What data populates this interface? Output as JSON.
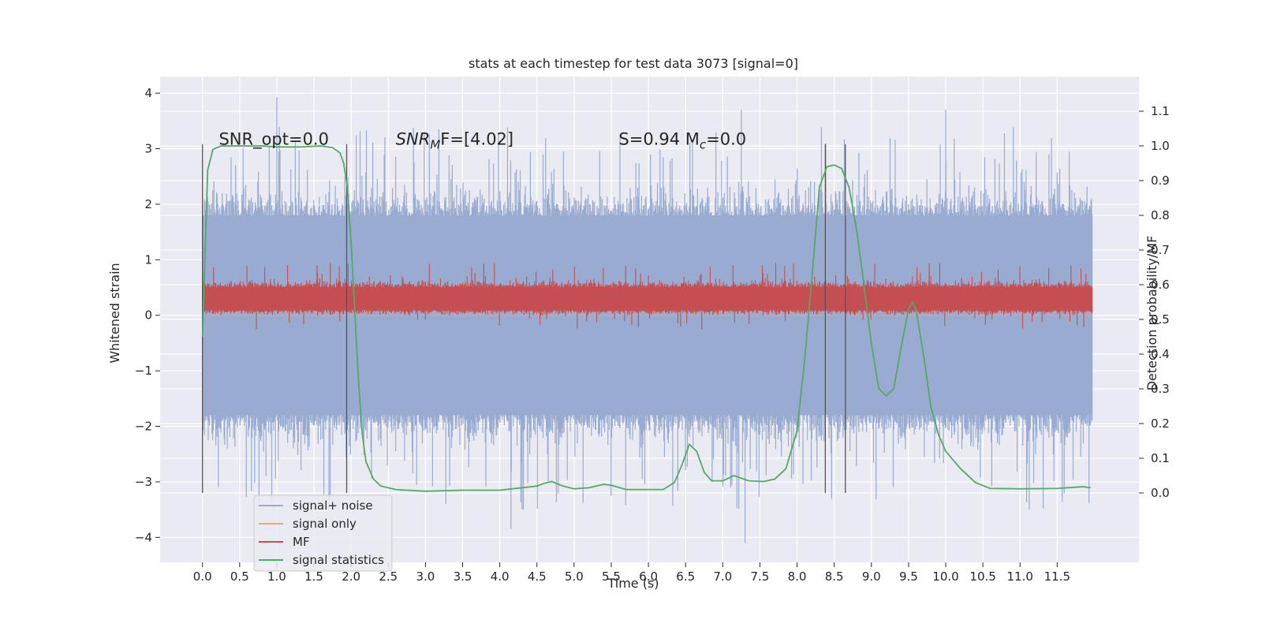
{
  "chart_data": {
    "type": "line",
    "title": "stats at each timestep for test data 3073 [signal=0]",
    "xlabel": "Time (s)",
    "ylabel": "Whitened strain",
    "ylabel_right": "Detection probability/MF",
    "xlim": [
      -0.57,
      12.6
    ],
    "ylim": [
      -4.45,
      4.3
    ],
    "ylim_right": [
      -0.2,
      1.2
    ],
    "x_ticks": [
      0.0,
      0.5,
      1.0,
      1.5,
      2.0,
      2.5,
      3.0,
      3.5,
      4.0,
      4.5,
      5.0,
      5.5,
      6.0,
      6.5,
      7.0,
      7.5,
      8.0,
      8.5,
      9.0,
      9.5,
      10.0,
      10.5,
      11.0,
      11.5
    ],
    "x_tick_labels": [
      "0.0",
      "0.5",
      "1.0",
      "1.5",
      "2.0",
      "2.5",
      "3.0",
      "3.5",
      "4.0",
      "4.5",
      "5.0",
      "5.5",
      "6.0",
      "6.5",
      "7.0",
      "7.5",
      "8.0",
      "8.5",
      "9.0",
      "9.5",
      "10.0",
      "10.5",
      "11.0",
      "11.5"
    ],
    "y_ticks": [
      -4,
      -3,
      -2,
      -1,
      0,
      1,
      2,
      3,
      4
    ],
    "y_tick_labels": [
      "−4",
      "−3",
      "−2",
      "−1",
      "0",
      "1",
      "2",
      "3",
      "4"
    ],
    "y_ticks_right": [
      0.0,
      0.1,
      0.2,
      0.3,
      0.4,
      0.5,
      0.6,
      0.7,
      0.8,
      0.9,
      1.0,
      1.1
    ],
    "y_tick_labels_right": [
      "0.0",
      "0.1",
      "0.2",
      "0.3",
      "0.4",
      "0.5",
      "0.6",
      "0.7",
      "0.8",
      "0.9",
      "1.0",
      "1.1"
    ],
    "grid": true,
    "legend_position": "bottom-left",
    "colors": {
      "background": "#eaeaf2",
      "signal_noise": "#9aabd1",
      "signal_only": "#e8a487",
      "mf": "#c44e52",
      "stats": "#55a868",
      "vlines": "#555555"
    },
    "series": [
      {
        "name": "signal+ noise",
        "axis": "left",
        "description_of_fill": "dense noise band",
        "x_range": [
          0.0,
          11.97
        ],
        "band_typical": [
          -2.0,
          2.0
        ],
        "band_peaks": [
          -4.1,
          3.93
        ]
      },
      {
        "name": "signal only",
        "axis": "left",
        "values_constant": 0.0
      },
      {
        "name": "MF",
        "axis": "left",
        "x_range": [
          0.0,
          11.97
        ],
        "band_typical": [
          0.05,
          0.6
        ],
        "band_peaks": [
          -0.55,
          1.0
        ]
      },
      {
        "name": "signal statistics",
        "axis": "right",
        "x": [
          0.0,
          0.07,
          0.14,
          0.25,
          0.5,
          0.8,
          1.0,
          1.3,
          1.6,
          1.75,
          1.85,
          1.9,
          1.95,
          2.0,
          2.05,
          2.1,
          2.15,
          2.2,
          2.3,
          2.4,
          2.6,
          3.0,
          3.5,
          4.0,
          4.3,
          4.5,
          4.6,
          4.7,
          4.85,
          5.0,
          5.2,
          5.4,
          5.5,
          5.7,
          6.0,
          6.2,
          6.35,
          6.45,
          6.55,
          6.65,
          6.75,
          6.85,
          7.0,
          7.15,
          7.35,
          7.55,
          7.7,
          7.85,
          8.0,
          8.1,
          8.2,
          8.3,
          8.4,
          8.5,
          8.6,
          8.7,
          8.8,
          8.9,
          9.0,
          9.1,
          9.2,
          9.3,
          9.4,
          9.5,
          9.55,
          9.6,
          9.7,
          9.8,
          9.9,
          10.0,
          10.2,
          10.4,
          10.6,
          11.0,
          11.5,
          11.85,
          11.95
        ],
        "values": [
          0.45,
          0.93,
          0.99,
          1.0,
          1.0,
          1.0,
          0.997,
          0.997,
          1.0,
          0.995,
          0.98,
          0.95,
          0.88,
          0.72,
          0.52,
          0.32,
          0.17,
          0.09,
          0.04,
          0.02,
          0.01,
          0.005,
          0.008,
          0.008,
          0.015,
          0.02,
          0.028,
          0.033,
          0.02,
          0.012,
          0.015,
          0.025,
          0.022,
          0.01,
          0.01,
          0.01,
          0.03,
          0.08,
          0.14,
          0.12,
          0.06,
          0.035,
          0.035,
          0.05,
          0.035,
          0.033,
          0.04,
          0.07,
          0.18,
          0.38,
          0.62,
          0.88,
          0.94,
          0.945,
          0.935,
          0.88,
          0.76,
          0.6,
          0.43,
          0.3,
          0.28,
          0.3,
          0.42,
          0.53,
          0.55,
          0.53,
          0.4,
          0.25,
          0.17,
          0.12,
          0.07,
          0.03,
          0.013,
          0.012,
          0.013,
          0.018,
          0.015
        ]
      }
    ],
    "vertical_lines_x": [
      0.0,
      1.94,
      8.38,
      8.65
    ],
    "annotations": [
      {
        "text": "SNR_opt=0.0",
        "x": 0.22,
        "y": 3.1
      },
      {
        "text": "SNR",
        "sub": "M",
        "suffix": "F=[4.02]",
        "x": 2.6,
        "y": 3.1,
        "italic_main": true
      },
      {
        "text": "S=0.94   M",
        "sub": "c",
        "suffix": "=0.0",
        "x": 5.6,
        "y": 3.1
      }
    ],
    "legend": [
      "signal+ noise",
      "signal only",
      "MF",
      "signal statistics"
    ]
  }
}
